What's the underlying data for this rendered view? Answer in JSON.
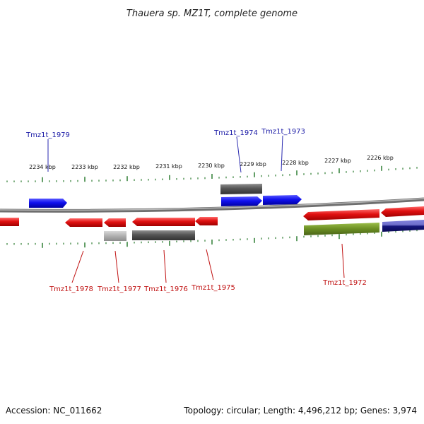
{
  "title": "Thauera sp. MZ1T, complete genome",
  "footer": {
    "accession": "Accession: NC_011662",
    "summary": "Topology: circular; Length: 4,496,212 bp; Genes: 3,974"
  },
  "colors": {
    "tick": "#2e7d32",
    "backbone": "#8a8a8a",
    "forward_gene": "#1010ee",
    "reverse_gene": "#e01010",
    "label_forward": "#1a1aa6",
    "label_reverse": "#c01010",
    "cds_feature": "#555555",
    "pseudo_feature": "#b0b0b0",
    "green_feature": "#6b8e23",
    "navy_feature": "#15157a"
  },
  "kbp_labels": [
    "2234 kbp",
    "2233 kbp",
    "2232 kbp",
    "2231 kbp",
    "2230 kbp",
    "2229 kbp",
    "2228 kbp",
    "2227 kbp",
    "2226 kbp"
  ],
  "forward_labels": [
    "Tmz1t_1979",
    "Tmz1t_1974",
    "Tmz1t_1973"
  ],
  "reverse_labels": [
    "Tmz1t_1978",
    "Tmz1t_1977",
    "Tmz1t_1976",
    "Tmz1t_1975",
    "Tmz1t_1972"
  ]
}
